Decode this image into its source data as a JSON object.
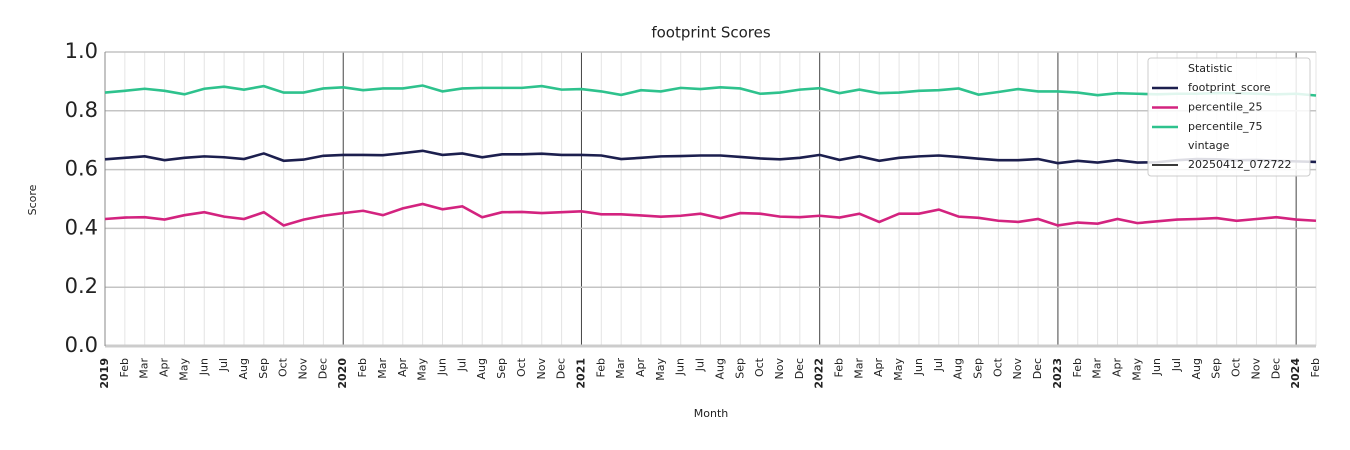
{
  "chart_data": {
    "type": "line",
    "title": "footprint Scores",
    "xlabel": "Month",
    "ylabel": "Score",
    "categories": [
      "2019",
      "Feb",
      "Mar",
      "Apr",
      "May",
      "Jun",
      "Jul",
      "Aug",
      "Sep",
      "Oct",
      "Nov",
      "Dec",
      "2020",
      "Feb",
      "Mar",
      "Apr",
      "May",
      "Jun",
      "Jul",
      "Aug",
      "Sep",
      "Oct",
      "Nov",
      "Dec",
      "2021",
      "Feb",
      "Mar",
      "Apr",
      "May",
      "Jun",
      "Jul",
      "Aug",
      "Sep",
      "Oct",
      "Nov",
      "Dec",
      "2022",
      "Feb",
      "Mar",
      "Apr",
      "May",
      "Jun",
      "Jul",
      "Aug",
      "Sep",
      "Oct",
      "Nov",
      "Dec",
      "2023",
      "Feb",
      "Mar",
      "Apr",
      "May",
      "Jun",
      "Jul",
      "Aug",
      "Sep",
      "Oct",
      "Nov",
      "Dec",
      "2024",
      "Feb"
    ],
    "series": [
      {
        "name": "footprint_score",
        "color": "#1c1f4e",
        "values": [
          0.635,
          0.64,
          0.645,
          0.632,
          0.64,
          0.645,
          0.642,
          0.636,
          0.655,
          0.63,
          0.634,
          0.647,
          0.65,
          0.65,
          0.649,
          0.656,
          0.664,
          0.65,
          0.655,
          0.642,
          0.652,
          0.652,
          0.654,
          0.65,
          0.65,
          0.648,
          0.636,
          0.64,
          0.645,
          0.646,
          0.648,
          0.648,
          0.643,
          0.638,
          0.635,
          0.64,
          0.65,
          0.633,
          0.645,
          0.63,
          0.64,
          0.645,
          0.648,
          0.643,
          0.637,
          0.632,
          0.632,
          0.636,
          0.622,
          0.63,
          0.624,
          0.632,
          0.624,
          0.625,
          0.632,
          0.636,
          0.635,
          0.632,
          0.633,
          0.63,
          0.628,
          0.626
        ]
      },
      {
        "name": "percentile_25",
        "color": "#d3237f",
        "values": [
          0.432,
          0.437,
          0.438,
          0.43,
          0.445,
          0.455,
          0.44,
          0.432,
          0.455,
          0.41,
          0.43,
          0.443,
          0.452,
          0.46,
          0.445,
          0.468,
          0.483,
          0.465,
          0.475,
          0.438,
          0.455,
          0.456,
          0.452,
          0.455,
          0.458,
          0.448,
          0.448,
          0.444,
          0.44,
          0.443,
          0.45,
          0.435,
          0.452,
          0.45,
          0.44,
          0.438,
          0.443,
          0.437,
          0.45,
          0.422,
          0.45,
          0.45,
          0.464,
          0.44,
          0.436,
          0.426,
          0.422,
          0.432,
          0.41,
          0.42,
          0.416,
          0.432,
          0.418,
          0.424,
          0.43,
          0.432,
          0.435,
          0.426,
          0.432,
          0.438,
          0.43,
          0.426
        ]
      },
      {
        "name": "percentile_75",
        "color": "#2ec28d",
        "values": [
          0.862,
          0.868,
          0.875,
          0.868,
          0.856,
          0.875,
          0.882,
          0.872,
          0.884,
          0.862,
          0.862,
          0.876,
          0.88,
          0.87,
          0.876,
          0.876,
          0.886,
          0.866,
          0.876,
          0.878,
          0.878,
          0.878,
          0.884,
          0.872,
          0.874,
          0.866,
          0.854,
          0.87,
          0.866,
          0.878,
          0.874,
          0.88,
          0.876,
          0.858,
          0.862,
          0.872,
          0.877,
          0.86,
          0.872,
          0.86,
          0.862,
          0.868,
          0.87,
          0.876,
          0.855,
          0.864,
          0.874,
          0.866,
          0.866,
          0.862,
          0.853,
          0.86,
          0.858,
          0.856,
          0.858,
          0.858,
          0.86,
          0.86,
          0.858,
          0.856,
          0.858,
          0.852
        ]
      }
    ],
    "legend_title": "Statistic",
    "vintage": {
      "title": "vintage",
      "name": "20250412_072722",
      "color": "#3a3a3a"
    },
    "legend": "upper right",
    "ylim": [
      0,
      1
    ],
    "yticks": [
      {
        "value": 0,
        "label": "0.0"
      },
      {
        "value": 0.2,
        "label": "0.2"
      },
      {
        "value": 0.4,
        "label": "0.4"
      },
      {
        "value": 0.6,
        "label": "0.6"
      },
      {
        "value": 0.8,
        "label": "0.8"
      },
      {
        "value": 1,
        "label": "1.0"
      }
    ],
    "grid": true
  }
}
